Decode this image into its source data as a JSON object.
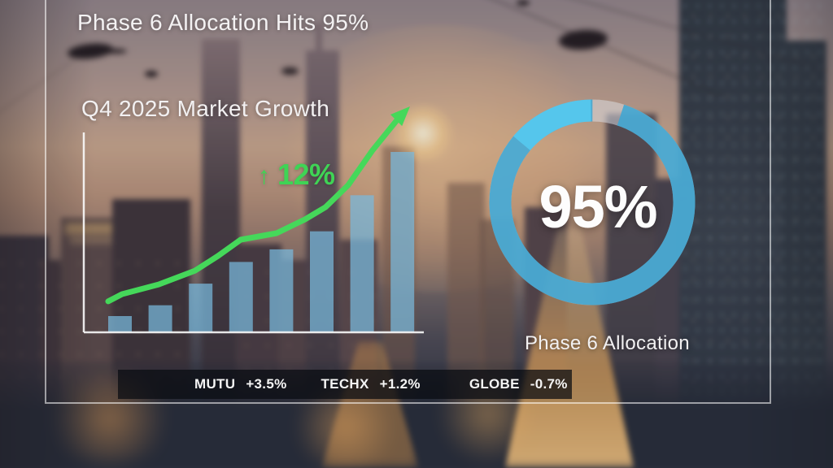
{
  "header": {
    "title": "Phase 6 Allocation Hits 95%"
  },
  "growth_section": {
    "title": "Q4 2025 Market Growth",
    "annotation_arrow": "↑",
    "annotation_value": "12%"
  },
  "donut_section": {
    "center_label": "95%",
    "caption": "Phase 6 Allocation",
    "percent": 95
  },
  "ticker": {
    "items": [
      {
        "symbol": "MUTU",
        "change": "+3.5%"
      },
      {
        "symbol": "TECHX",
        "change": "+1.2%"
      },
      {
        "symbol": "GLOBE",
        "change": "-0.7%"
      }
    ]
  },
  "chart_data": [
    {
      "type": "bar",
      "title": "Q4 2025 Market Growth",
      "bar_count": 8,
      "categories": [
        "",
        "",
        "",
        "",
        "",
        "",
        "",
        ""
      ],
      "values_relative": [
        9,
        15,
        27,
        39,
        46,
        56,
        76,
        100
      ],
      "ylim": [
        0,
        100
      ],
      "grid": false,
      "bar_color": "#79bade",
      "bar_opacity": 0.72,
      "axis_color": "rgba(250,250,250,0.9)",
      "trend_line": {
        "color": "#45d85a",
        "annotation": "↑ 12%",
        "points_norm": [
          [
            0.0,
            0.137
          ],
          [
            0.046,
            0.169
          ],
          [
            0.167,
            0.212
          ],
          [
            0.288,
            0.273
          ],
          [
            0.364,
            0.338
          ],
          [
            0.439,
            0.41
          ],
          [
            0.558,
            0.439
          ],
          [
            0.652,
            0.5
          ],
          [
            0.72,
            0.554
          ],
          [
            0.795,
            0.651
          ],
          [
            0.876,
            0.806
          ],
          [
            0.965,
            0.953
          ],
          [
            1.0,
            1.0
          ]
        ]
      }
    },
    {
      "type": "pie",
      "variant": "donut",
      "caption": "Phase 6 Allocation",
      "center_text": "95%",
      "values": [
        95,
        5
      ],
      "segment_colors": [
        "#3fa6d3",
        "rgba(222,226,233,0.5)"
      ],
      "legend_position": "none"
    }
  ],
  "colors": {
    "accent_green": "#45d85a",
    "bar_blue": "#79bade",
    "ring_blue": "#3fa6d3",
    "ring_highlight": "#55c9ee",
    "text_white": "#f4f2f3",
    "ticker_bg": "rgba(9,11,16,0.72)"
  }
}
